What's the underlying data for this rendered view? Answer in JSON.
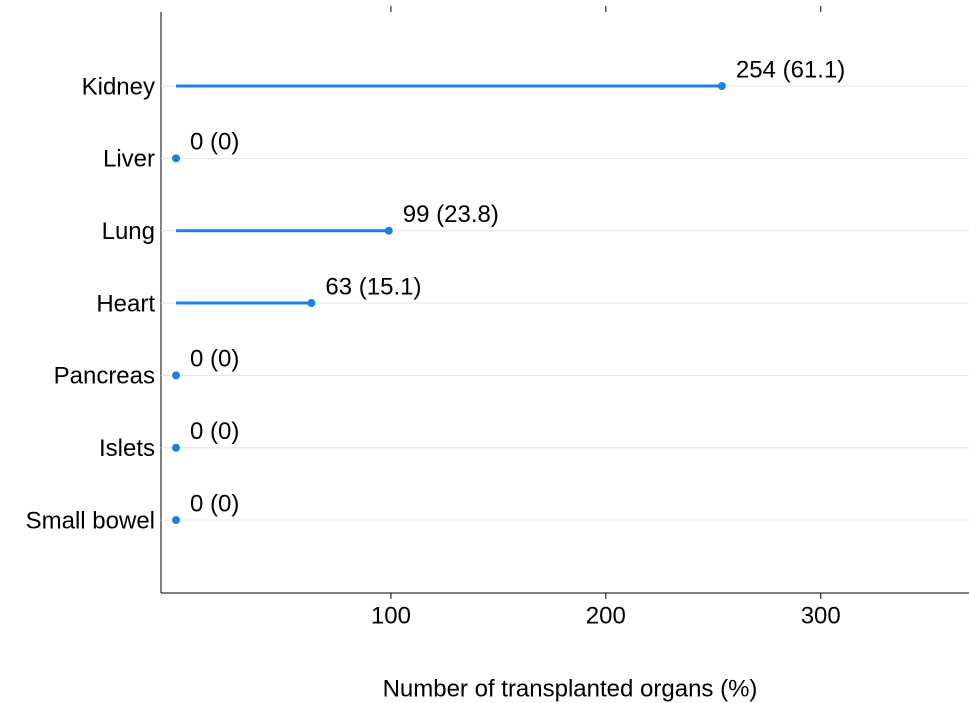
{
  "chart_data": {
    "type": "lollipop",
    "x_label": "Number of transplanted organs (%)",
    "categories": [
      "Kidney",
      "Liver",
      "Lung",
      "Heart",
      "Pancreas",
      "Islets",
      "Small bowel"
    ],
    "values": [
      254,
      0,
      99,
      63,
      0,
      0,
      0
    ],
    "value_labels": [
      "254 (61.1)",
      "0 (0)",
      "99 (23.8)",
      "63 (15.1)",
      "0 (0)",
      "0 (0)",
      "0 (0)"
    ],
    "color": "#1a80e6",
    "xlim": [
      -7,
      369
    ],
    "xticks": [
      100,
      200,
      300
    ],
    "grid": true
  }
}
